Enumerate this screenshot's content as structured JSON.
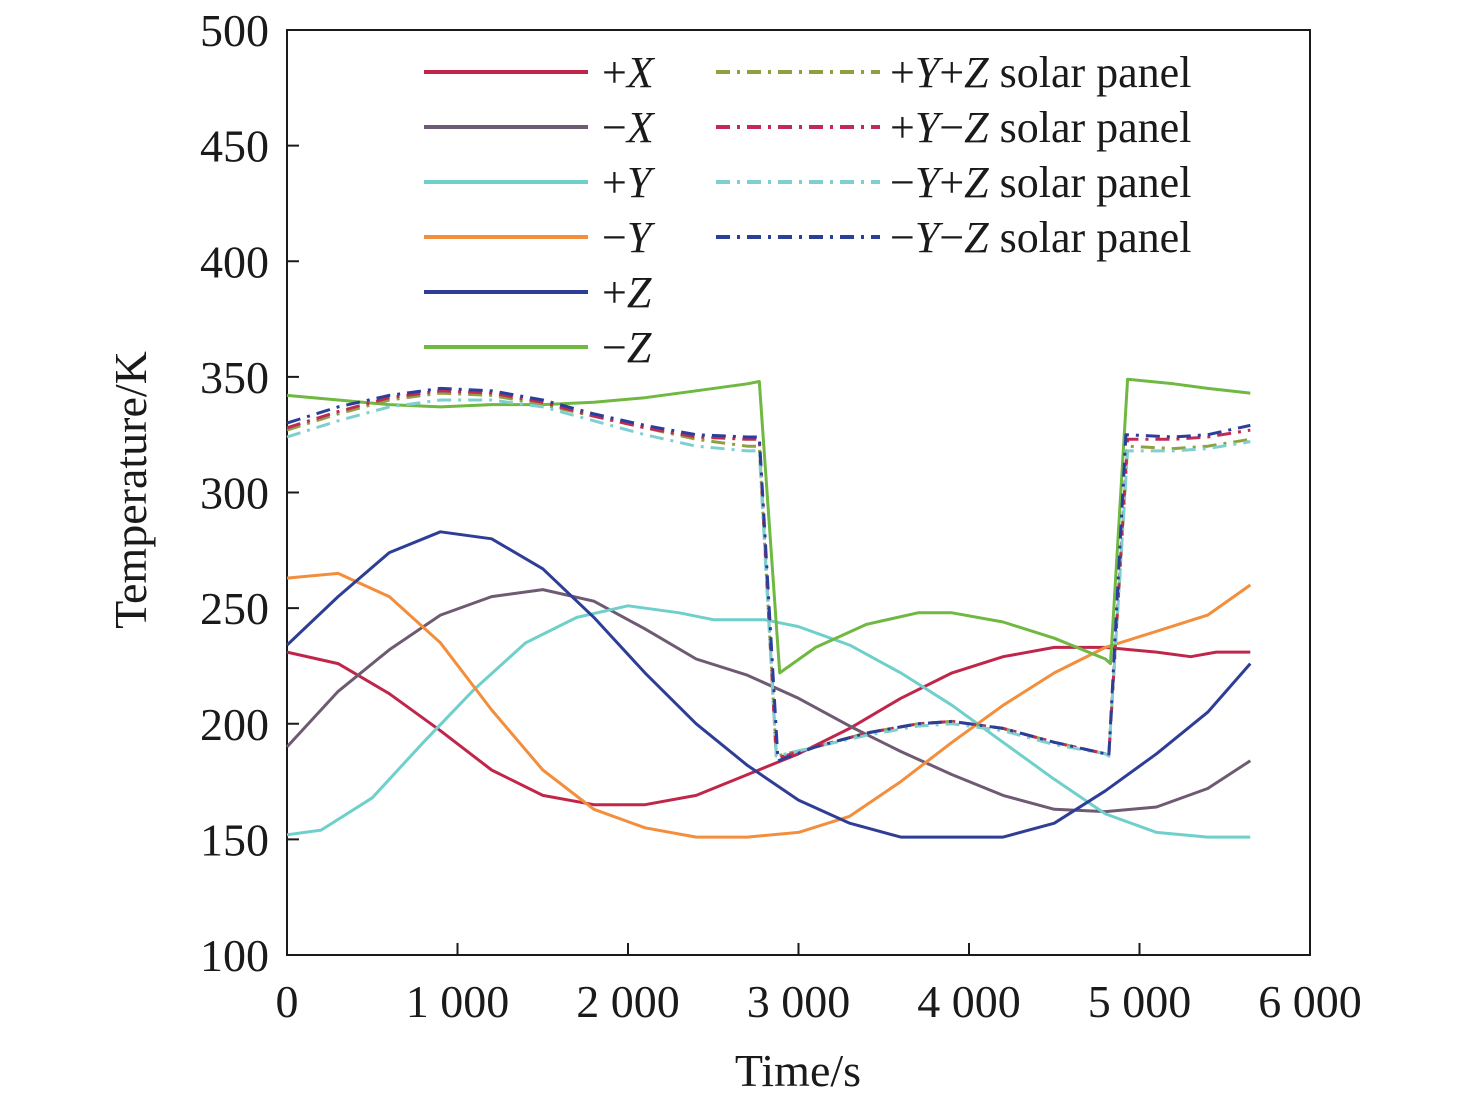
{
  "chart_data": {
    "type": "line",
    "xlabel": "Time/s",
    "ylabel": "Temperature/K",
    "xlim": [
      0,
      6000
    ],
    "ylim": [
      100,
      500
    ],
    "xticks": [
      0,
      1000,
      2000,
      3000,
      4000,
      5000,
      6000
    ],
    "xtick_labels": [
      "0",
      "1 000",
      "2 000",
      "3 000",
      "4 000",
      "5 000",
      "6 000"
    ],
    "yticks": [
      100,
      150,
      200,
      250,
      300,
      350,
      400,
      450,
      500
    ],
    "ytick_labels": [
      "100",
      "150",
      "200",
      "250",
      "300",
      "350",
      "400",
      "450",
      "500"
    ],
    "grid": false,
    "legend_position": "top-right",
    "series": [
      {
        "name": "+X",
        "color": "#c0264a",
        "dash": "solid",
        "points": [
          [
            0,
            231
          ],
          [
            300,
            226
          ],
          [
            600,
            213
          ],
          [
            900,
            197
          ],
          [
            1200,
            180
          ],
          [
            1500,
            169
          ],
          [
            1800,
            165
          ],
          [
            2100,
            165
          ],
          [
            2400,
            169
          ],
          [
            2700,
            178
          ],
          [
            3000,
            187
          ],
          [
            3300,
            198
          ],
          [
            3600,
            211
          ],
          [
            3900,
            222
          ],
          [
            4200,
            229
          ],
          [
            4500,
            233
          ],
          [
            4800,
            233
          ],
          [
            5100,
            231
          ],
          [
            5300,
            229
          ],
          [
            5450,
            231
          ],
          [
            5650,
            231
          ]
        ]
      },
      {
        "name": "−X",
        "color": "#6e5a72",
        "dash": "solid",
        "points": [
          [
            0,
            190
          ],
          [
            300,
            214
          ],
          [
            600,
            232
          ],
          [
            900,
            247
          ],
          [
            1200,
            255
          ],
          [
            1500,
            258
          ],
          [
            1800,
            253
          ],
          [
            2100,
            241
          ],
          [
            2400,
            228
          ],
          [
            2700,
            221
          ],
          [
            3000,
            211
          ],
          [
            3300,
            199
          ],
          [
            3600,
            188
          ],
          [
            3900,
            178
          ],
          [
            4200,
            169
          ],
          [
            4500,
            163
          ],
          [
            4800,
            162
          ],
          [
            5100,
            164
          ],
          [
            5400,
            172
          ],
          [
            5650,
            184
          ]
        ]
      },
      {
        "name": "+Y",
        "color": "#6fd0cb",
        "dash": "solid",
        "points": [
          [
            0,
            152
          ],
          [
            200,
            154
          ],
          [
            500,
            168
          ],
          [
            800,
            192
          ],
          [
            1100,
            215
          ],
          [
            1400,
            235
          ],
          [
            1700,
            246
          ],
          [
            2000,
            251
          ],
          [
            2300,
            248
          ],
          [
            2500,
            245
          ],
          [
            2800,
            245
          ],
          [
            3000,
            242
          ],
          [
            3300,
            234
          ],
          [
            3600,
            222
          ],
          [
            3900,
            208
          ],
          [
            4200,
            192
          ],
          [
            4500,
            176
          ],
          [
            4800,
            161
          ],
          [
            5100,
            153
          ],
          [
            5400,
            151
          ],
          [
            5650,
            151
          ]
        ]
      },
      {
        "name": "−Y",
        "color": "#f28e3c",
        "dash": "solid",
        "points": [
          [
            0,
            263
          ],
          [
            300,
            265
          ],
          [
            600,
            255
          ],
          [
            900,
            235
          ],
          [
            1200,
            206
          ],
          [
            1500,
            180
          ],
          [
            1800,
            163
          ],
          [
            2100,
            155
          ],
          [
            2400,
            151
          ],
          [
            2700,
            151
          ],
          [
            3000,
            153
          ],
          [
            3300,
            160
          ],
          [
            3600,
            175
          ],
          [
            3900,
            192
          ],
          [
            4200,
            208
          ],
          [
            4500,
            222
          ],
          [
            4800,
            233
          ],
          [
            5100,
            240
          ],
          [
            5400,
            247
          ],
          [
            5650,
            260
          ]
        ]
      },
      {
        "name": "+Z",
        "color": "#2e3d96",
        "dash": "solid",
        "points": [
          [
            0,
            234
          ],
          [
            300,
            255
          ],
          [
            600,
            274
          ],
          [
            900,
            283
          ],
          [
            1200,
            280
          ],
          [
            1500,
            267
          ],
          [
            1800,
            246
          ],
          [
            2100,
            222
          ],
          [
            2400,
            200
          ],
          [
            2700,
            182
          ],
          [
            3000,
            167
          ],
          [
            3300,
            157
          ],
          [
            3600,
            151
          ],
          [
            3900,
            151
          ],
          [
            4200,
            151
          ],
          [
            4500,
            157
          ],
          [
            4800,
            171
          ],
          [
            5100,
            187
          ],
          [
            5400,
            205
          ],
          [
            5650,
            226
          ]
        ]
      },
      {
        "name": "−Z",
        "color": "#6fb841",
        "dash": "solid",
        "points": [
          [
            0,
            342
          ],
          [
            300,
            340
          ],
          [
            600,
            338
          ],
          [
            900,
            337
          ],
          [
            1200,
            338
          ],
          [
            1500,
            338
          ],
          [
            1800,
            339
          ],
          [
            2100,
            341
          ],
          [
            2400,
            344
          ],
          [
            2700,
            347
          ],
          [
            2770,
            348
          ],
          [
            2890,
            222
          ],
          [
            3100,
            233
          ],
          [
            3400,
            243
          ],
          [
            3700,
            248
          ],
          [
            3900,
            248
          ],
          [
            4200,
            244
          ],
          [
            4500,
            237
          ],
          [
            4800,
            228
          ],
          [
            4830,
            226
          ],
          [
            4930,
            349
          ],
          [
            5200,
            347
          ],
          [
            5400,
            345
          ],
          [
            5650,
            343
          ]
        ]
      },
      {
        "name": "+Y+Z solar panel",
        "color": "#8fa043",
        "dash": "dashdot",
        "points": [
          [
            0,
            327
          ],
          [
            300,
            334
          ],
          [
            600,
            340
          ],
          [
            900,
            343
          ],
          [
            1200,
            342
          ],
          [
            1500,
            338
          ],
          [
            1800,
            333
          ],
          [
            2100,
            328
          ],
          [
            2400,
            323
          ],
          [
            2700,
            320
          ],
          [
            2770,
            320
          ],
          [
            2870,
            186
          ],
          [
            3100,
            190
          ],
          [
            3400,
            196
          ],
          [
            3700,
            200
          ],
          [
            3900,
            201
          ],
          [
            4200,
            198
          ],
          [
            4500,
            192
          ],
          [
            4800,
            187
          ],
          [
            4820,
            186
          ],
          [
            4930,
            320
          ],
          [
            5200,
            319
          ],
          [
            5400,
            320
          ],
          [
            5650,
            323
          ]
        ]
      },
      {
        "name": "+Y−Z solar panel",
        "color": "#c22a55",
        "dash": "dashdot",
        "points": [
          [
            0,
            328
          ],
          [
            300,
            335
          ],
          [
            600,
            341
          ],
          [
            900,
            344
          ],
          [
            1200,
            343
          ],
          [
            1500,
            339
          ],
          [
            1800,
            333
          ],
          [
            2100,
            328
          ],
          [
            2400,
            324
          ],
          [
            2700,
            323
          ],
          [
            2770,
            323
          ],
          [
            2870,
            185
          ],
          [
            3100,
            190
          ],
          [
            3400,
            196
          ],
          [
            3700,
            200
          ],
          [
            3900,
            201
          ],
          [
            4200,
            198
          ],
          [
            4500,
            192
          ],
          [
            4800,
            187
          ],
          [
            4820,
            186
          ],
          [
            4930,
            323
          ],
          [
            5200,
            323
          ],
          [
            5400,
            324
          ],
          [
            5650,
            327
          ]
        ]
      },
      {
        "name": "−Y+Z solar panel",
        "color": "#7fcfd0",
        "dash": "dashdot",
        "points": [
          [
            0,
            324
          ],
          [
            300,
            331
          ],
          [
            600,
            337
          ],
          [
            900,
            340
          ],
          [
            1200,
            340
          ],
          [
            1500,
            337
          ],
          [
            1800,
            331
          ],
          [
            2100,
            325
          ],
          [
            2400,
            320
          ],
          [
            2700,
            318
          ],
          [
            2770,
            318
          ],
          [
            2870,
            186
          ],
          [
            3100,
            190
          ],
          [
            3400,
            195
          ],
          [
            3700,
            199
          ],
          [
            3900,
            200
          ],
          [
            4200,
            197
          ],
          [
            4500,
            191
          ],
          [
            4800,
            187
          ],
          [
            4820,
            186
          ],
          [
            4930,
            318
          ],
          [
            5200,
            318
          ],
          [
            5400,
            319
          ],
          [
            5650,
            322
          ]
        ]
      },
      {
        "name": "−Y−Z solar panel",
        "color": "#2a3f9a",
        "dash": "dashdot",
        "points": [
          [
            0,
            330
          ],
          [
            300,
            337
          ],
          [
            600,
            342
          ],
          [
            900,
            345
          ],
          [
            1200,
            344
          ],
          [
            1500,
            340
          ],
          [
            1800,
            334
          ],
          [
            2100,
            329
          ],
          [
            2400,
            325
          ],
          [
            2700,
            324
          ],
          [
            2770,
            324
          ],
          [
            2880,
            184
          ],
          [
            3100,
            190
          ],
          [
            3400,
            196
          ],
          [
            3700,
            200
          ],
          [
            3900,
            201
          ],
          [
            4200,
            198
          ],
          [
            4500,
            192
          ],
          [
            4800,
            187
          ],
          [
            4820,
            186
          ],
          [
            4920,
            325
          ],
          [
            5200,
            324
          ],
          [
            5400,
            325
          ],
          [
            5650,
            329
          ]
        ]
      }
    ]
  }
}
